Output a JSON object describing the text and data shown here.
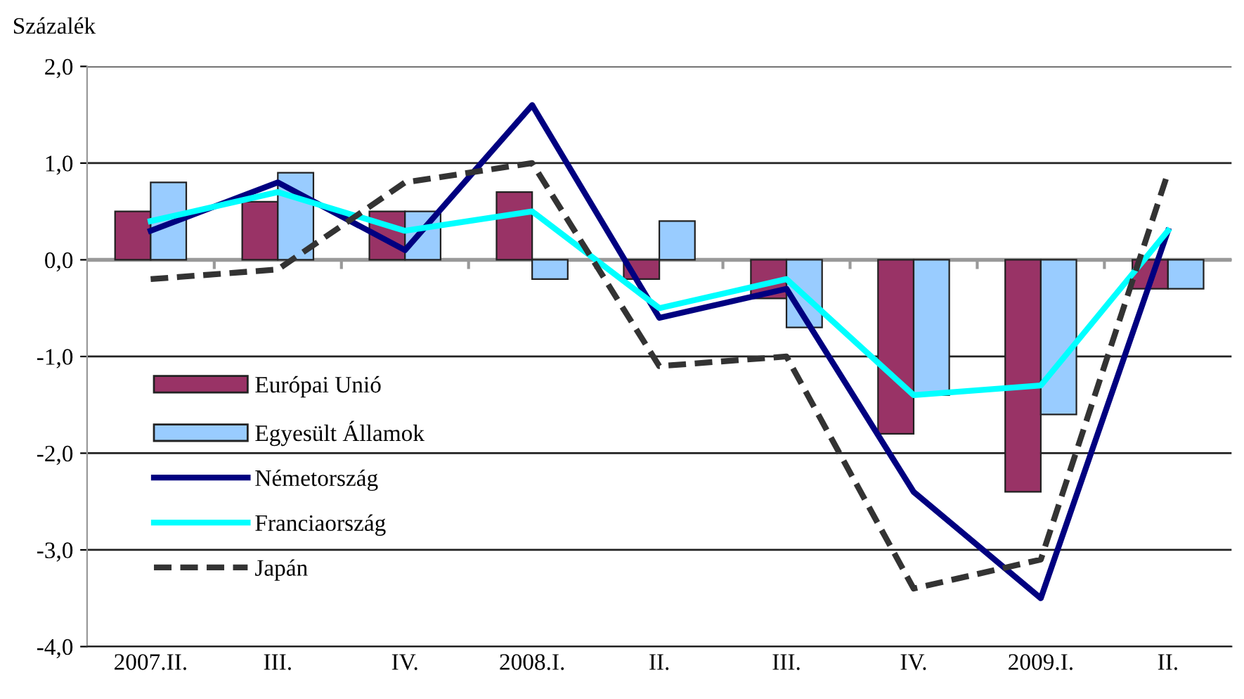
{
  "chart_data": {
    "type": "bar",
    "ylabel": "Százalék",
    "categories": [
      "2007.II.",
      "III.",
      "IV.",
      "2008.I.",
      "II.",
      "III.",
      "IV.",
      "2009.I.",
      "II."
    ],
    "ylim": [
      -4,
      2
    ],
    "yticks": [
      {
        "value": -4,
        "label": "-4,0"
      },
      {
        "value": -3,
        "label": "-3,0"
      },
      {
        "value": -2,
        "label": "-2,0"
      },
      {
        "value": -1,
        "label": "-1,0"
      },
      {
        "value": 0,
        "label": "0,0"
      },
      {
        "value": 1,
        "label": "1,0"
      },
      {
        "value": 2,
        "label": "2,0"
      }
    ],
    "grid": "y",
    "legend": "left",
    "series": [
      {
        "name": "Európai Unió",
        "color": "#993366",
        "values": [
          0.5,
          0.6,
          0.5,
          0.7,
          -0.2,
          -0.4,
          -1.8,
          -2.4,
          -0.3
        ]
      },
      {
        "name": "Egyesült Államok",
        "color": "#99ccff",
        "values": [
          0.8,
          0.9,
          0.5,
          -0.2,
          0.4,
          -0.7,
          -1.4,
          -1.6,
          -0.3
        ]
      },
      {
        "name": "Németország",
        "type": "line",
        "color": "#000080",
        "line_style": "solid",
        "values": [
          0.3,
          0.8,
          0.1,
          1.6,
          -0.6,
          -0.3,
          -2.4,
          -3.5,
          0.3
        ]
      },
      {
        "name": "Franciaország",
        "type": "line",
        "color": "#00ffff",
        "line_style": "solid",
        "values": [
          0.4,
          0.7,
          0.3,
          0.5,
          -0.5,
          -0.2,
          -1.4,
          -1.3,
          0.3
        ]
      },
      {
        "name": "Japán",
        "type": "line",
        "color": "#333333",
        "line_style": "dashed",
        "values": [
          -0.2,
          -0.1,
          0.8,
          1.0,
          -1.1,
          -1.0,
          -3.4,
          -3.1,
          0.9
        ]
      }
    ]
  }
}
